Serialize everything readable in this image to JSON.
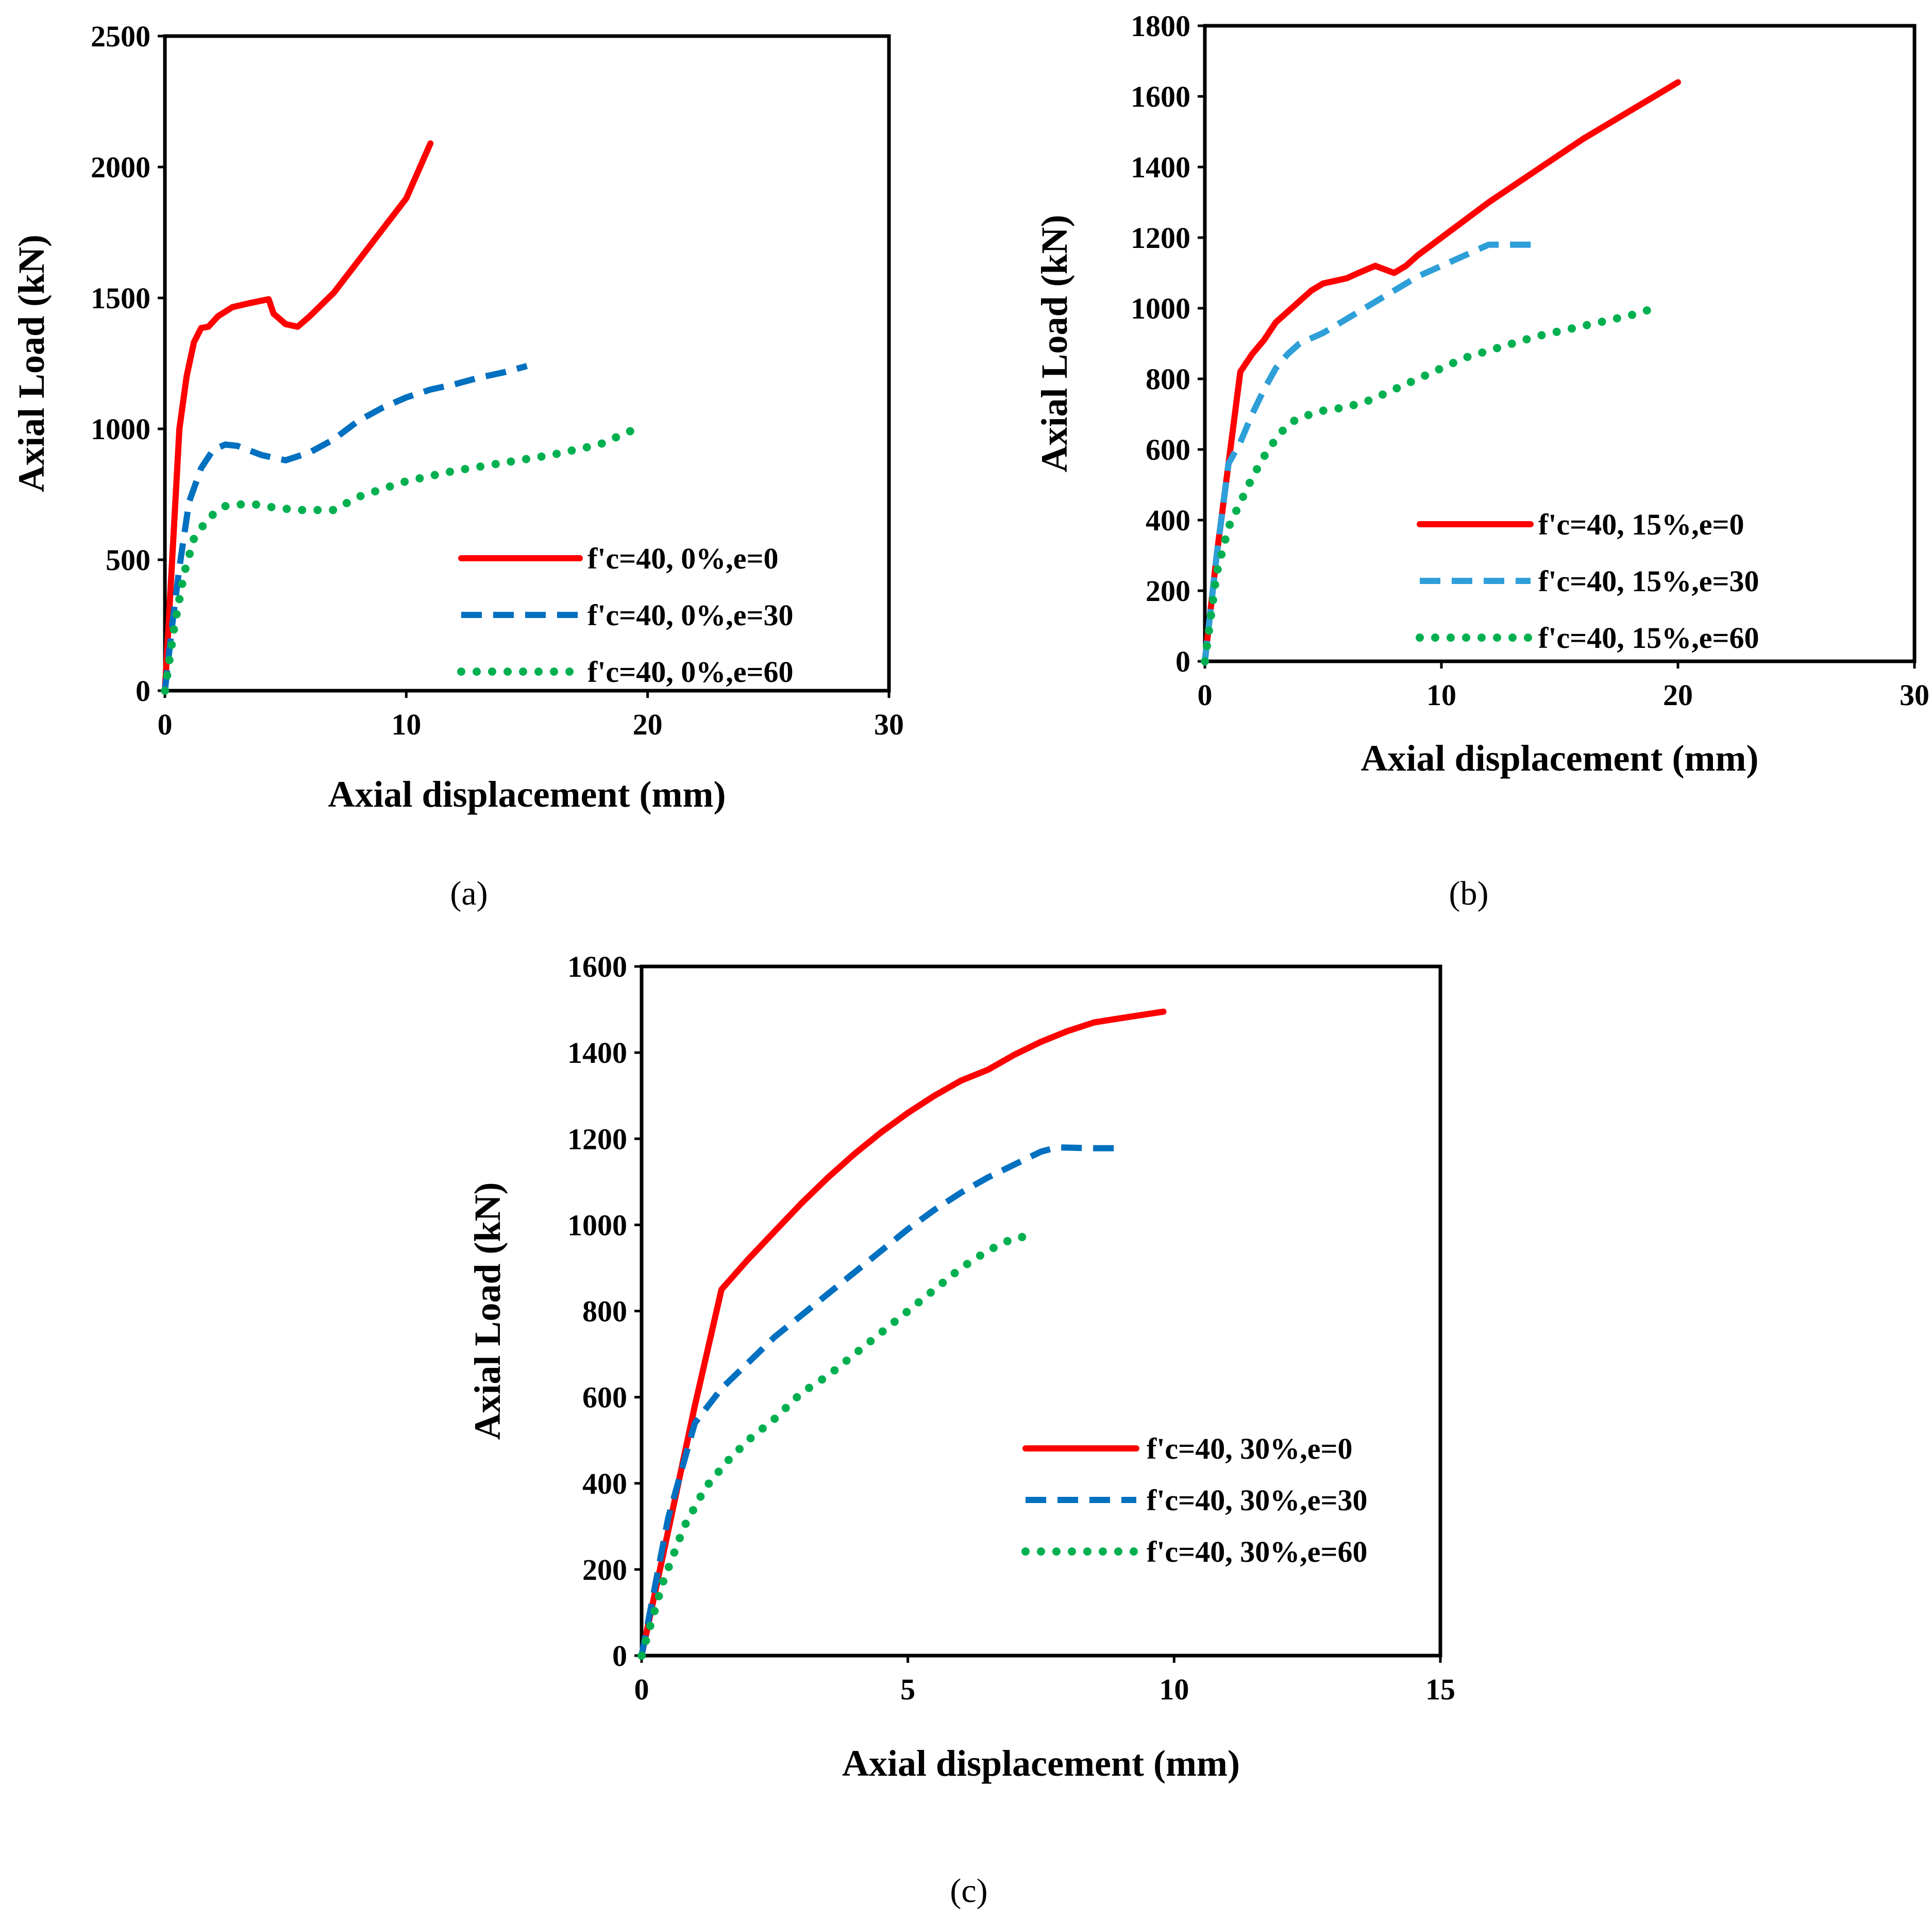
{
  "chart_data": [
    {
      "type": "line",
      "caption": "(a)",
      "xlabel": "Axial displacement (mm)",
      "ylabel": "Axial Load (kN)",
      "xlim": [
        0,
        30
      ],
      "ylim": [
        0,
        2500
      ],
      "xticks": [
        0,
        10,
        20,
        30
      ],
      "yticks": [
        0,
        500,
        1000,
        1500,
        2000,
        2500
      ],
      "grid": false,
      "legend_position": "bottom-right",
      "series": [
        {
          "name": "f'c=40, 0%,e=0",
          "color": "#ff0000",
          "style": "solid",
          "points": [
            [
              0,
              0
            ],
            [
              0.3,
              500
            ],
            [
              0.6,
              1000
            ],
            [
              0.9,
              1200
            ],
            [
              1.2,
              1330
            ],
            [
              1.5,
              1385
            ],
            [
              1.8,
              1390
            ],
            [
              2.2,
              1430
            ],
            [
              2.8,
              1465
            ],
            [
              3.5,
              1480
            ],
            [
              4.3,
              1495
            ],
            [
              4.5,
              1440
            ],
            [
              5.0,
              1400
            ],
            [
              5.5,
              1390
            ],
            [
              6.0,
              1430
            ],
            [
              7.0,
              1520
            ],
            [
              8.0,
              1640
            ],
            [
              9.0,
              1760
            ],
            [
              10.0,
              1880
            ],
            [
              11.0,
              2090
            ]
          ]
        },
        {
          "name": "f'c=40, 0%,e=30",
          "color": "#0070c0",
          "style": "dashed",
          "points": [
            [
              0,
              0
            ],
            [
              0.3,
              250
            ],
            [
              0.6,
              470
            ],
            [
              1.0,
              720
            ],
            [
              1.5,
              850
            ],
            [
              2.0,
              920
            ],
            [
              2.5,
              940
            ],
            [
              3.0,
              935
            ],
            [
              4.0,
              900
            ],
            [
              5.0,
              880
            ],
            [
              6.0,
              910
            ],
            [
              7.0,
              960
            ],
            [
              8.0,
              1030
            ],
            [
              9.0,
              1080
            ],
            [
              10.0,
              1120
            ],
            [
              11.0,
              1150
            ],
            [
              12.0,
              1170
            ],
            [
              13.0,
              1195
            ],
            [
              14.0,
              1215
            ],
            [
              15.0,
              1240
            ]
          ]
        },
        {
          "name": "f'c=40, 0%,e=60",
          "color": "#00b050",
          "style": "dotted",
          "points": [
            [
              0,
              0
            ],
            [
              0.4,
              250
            ],
            [
              0.8,
              450
            ],
            [
              1.2,
              580
            ],
            [
              1.8,
              660
            ],
            [
              2.5,
              705
            ],
            [
              3.5,
              715
            ],
            [
              4.5,
              700
            ],
            [
              5.5,
              690
            ],
            [
              7.0,
              690
            ],
            [
              8.0,
              740
            ],
            [
              9.0,
              770
            ],
            [
              10.0,
              800
            ],
            [
              12.0,
              840
            ],
            [
              14.0,
              870
            ],
            [
              16.0,
              900
            ],
            [
              18.0,
              940
            ],
            [
              19.5,
              1000
            ]
          ]
        }
      ]
    },
    {
      "type": "line",
      "caption": "(b)",
      "xlabel": "Axial displacement (mm)",
      "ylabel": "Axial Load (kN)",
      "xlim": [
        0,
        30
      ],
      "ylim": [
        0,
        1800
      ],
      "xticks": [
        0,
        10,
        20,
        30
      ],
      "yticks": [
        0,
        200,
        400,
        600,
        800,
        1000,
        1200,
        1400,
        1600,
        1800
      ],
      "grid": false,
      "legend_position": "bottom-right",
      "series": [
        {
          "name": "f'c=40, 15%,e=0",
          "color": "#ff0000",
          "style": "solid",
          "points": [
            [
              0,
              0
            ],
            [
              0.5,
              300
            ],
            [
              1.0,
              560
            ],
            [
              1.5,
              820
            ],
            [
              2.0,
              870
            ],
            [
              2.5,
              910
            ],
            [
              3.0,
              960
            ],
            [
              3.5,
              990
            ],
            [
              4.0,
              1020
            ],
            [
              4.5,
              1050
            ],
            [
              5.0,
              1070
            ],
            [
              6.0,
              1085
            ],
            [
              6.5,
              1100
            ],
            [
              7.2,
              1120
            ],
            [
              7.6,
              1110
            ],
            [
              8.0,
              1100
            ],
            [
              8.5,
              1120
            ],
            [
              9.0,
              1150
            ],
            [
              10.0,
              1200
            ],
            [
              11.0,
              1250
            ],
            [
              12.0,
              1300
            ],
            [
              14.0,
              1390
            ],
            [
              16.0,
              1480
            ],
            [
              18.0,
              1560
            ],
            [
              20.0,
              1640
            ]
          ]
        },
        {
          "name": "f'c=40, 15%,e=30",
          "color": "#2e9fd8",
          "style": "dashed",
          "points": [
            [
              0,
              0
            ],
            [
              0.5,
              300
            ],
            [
              1.0,
              560
            ],
            [
              1.5,
              620
            ],
            [
              2.0,
              700
            ],
            [
              2.5,
              770
            ],
            [
              3.0,
              830
            ],
            [
              3.5,
              870
            ],
            [
              4.0,
              900
            ],
            [
              5.0,
              930
            ],
            [
              6.0,
              970
            ],
            [
              7.0,
              1010
            ],
            [
              8.0,
              1050
            ],
            [
              9.0,
              1090
            ],
            [
              10.0,
              1120
            ],
            [
              11.0,
              1150
            ],
            [
              12.0,
              1180
            ],
            [
              13.0,
              1180
            ],
            [
              14.0,
              1180
            ]
          ]
        },
        {
          "name": "f'c=40, 15%,e=60",
          "color": "#00b050",
          "style": "dotted",
          "points": [
            [
              0,
              0
            ],
            [
              0.5,
              250
            ],
            [
              1.0,
              380
            ],
            [
              1.5,
              450
            ],
            [
              2.0,
              520
            ],
            [
              2.5,
              580
            ],
            [
              3.0,
              630
            ],
            [
              3.5,
              670
            ],
            [
              4.0,
              690
            ],
            [
              5.0,
              710
            ],
            [
              6.0,
              720
            ],
            [
              7.0,
              740
            ],
            [
              8.0,
              770
            ],
            [
              9.0,
              800
            ],
            [
              10.0,
              830
            ],
            [
              11.0,
              860
            ],
            [
              12.0,
              880
            ],
            [
              13.0,
              900
            ],
            [
              14.0,
              920
            ],
            [
              15.0,
              935
            ],
            [
              16.0,
              950
            ],
            [
              17.0,
              965
            ],
            [
              18.0,
              980
            ],
            [
              19.0,
              1000
            ]
          ]
        }
      ]
    },
    {
      "type": "line",
      "caption": "(c)",
      "xlabel": "Axial displacement (mm)",
      "ylabel": "Axial Load (kN)",
      "xlim": [
        0,
        15
      ],
      "ylim": [
        0,
        1600
      ],
      "xticks": [
        0,
        5,
        10,
        15
      ],
      "yticks": [
        0,
        200,
        400,
        600,
        800,
        1000,
        1200,
        1400,
        1600
      ],
      "grid": false,
      "legend_position": "bottom-right",
      "series": [
        {
          "name": "f'c=40, 30%,e=0",
          "color": "#ff0000",
          "style": "solid",
          "points": [
            [
              0,
              0
            ],
            [
              0.5,
              290
            ],
            [
              1.0,
              580
            ],
            [
              1.5,
              850
            ],
            [
              2.0,
              920
            ],
            [
              2.5,
              985
            ],
            [
              3.0,
              1050
            ],
            [
              3.5,
              1110
            ],
            [
              4.0,
              1165
            ],
            [
              4.5,
              1215
            ],
            [
              5.0,
              1260
            ],
            [
              5.5,
              1300
            ],
            [
              6.0,
              1335
            ],
            [
              6.5,
              1360
            ],
            [
              7.0,
              1395
            ],
            [
              7.5,
              1425
            ],
            [
              8.0,
              1450
            ],
            [
              8.5,
              1470
            ],
            [
              9.0,
              1480
            ],
            [
              9.8,
              1495
            ]
          ]
        },
        {
          "name": "f'c=40, 30%,e=30",
          "color": "#0070c0",
          "style": "dashed",
          "points": [
            [
              0,
              0
            ],
            [
              0.5,
              320
            ],
            [
              1.0,
              540
            ],
            [
              1.5,
              620
            ],
            [
              2.0,
              680
            ],
            [
              2.5,
              740
            ],
            [
              3.0,
              790
            ],
            [
              3.5,
              840
            ],
            [
              4.0,
              890
            ],
            [
              4.5,
              940
            ],
            [
              5.0,
              990
            ],
            [
              5.5,
              1035
            ],
            [
              6.0,
              1075
            ],
            [
              6.5,
              1110
            ],
            [
              7.0,
              1140
            ],
            [
              7.5,
              1170
            ],
            [
              7.8,
              1180
            ],
            [
              8.5,
              1178
            ],
            [
              9.0,
              1178
            ]
          ]
        },
        {
          "name": "f'c=40, 30%,e=60",
          "color": "#00b050",
          "style": "dotted",
          "points": [
            [
              0,
              0
            ],
            [
              0.4,
              170
            ],
            [
              0.8,
              300
            ],
            [
              1.2,
              390
            ],
            [
              1.6,
              450
            ],
            [
              2.0,
              500
            ],
            [
              2.5,
              550
            ],
            [
              3.0,
              610
            ],
            [
              3.5,
              650
            ],
            [
              4.0,
              700
            ],
            [
              4.5,
              750
            ],
            [
              5.0,
              800
            ],
            [
              5.5,
              850
            ],
            [
              6.0,
              900
            ],
            [
              6.5,
              940
            ],
            [
              7.0,
              970
            ],
            [
              7.4,
              975
            ]
          ]
        }
      ]
    }
  ]
}
